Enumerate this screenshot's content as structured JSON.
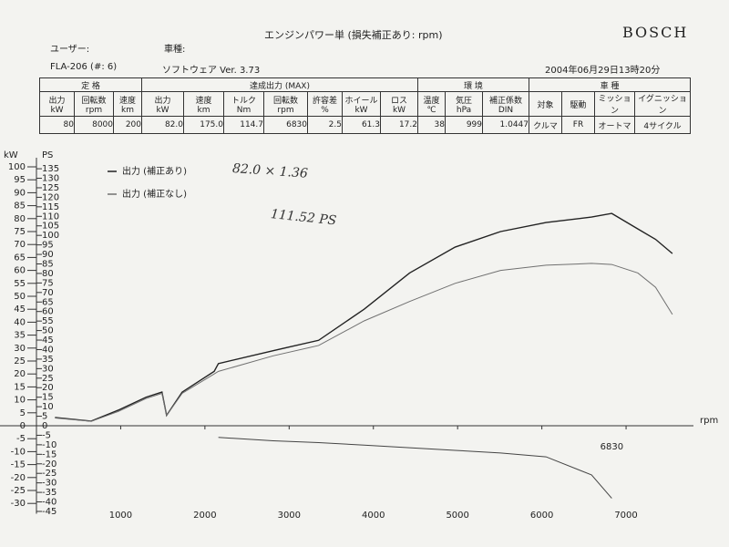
{
  "header": {
    "title": "エンジンパワー単 (損失補正あり: rpm)",
    "brand": "BOSCH",
    "user": "ユーザー:",
    "car": "車種:",
    "device": "FLA-206 (#: 6)",
    "software": "ソフトウェア Ver. 3.73",
    "datetime": "2004年06月29日13時20分"
  },
  "table": {
    "groups": [
      {
        "name": "定 格",
        "span": 3
      },
      {
        "name": "達成出力 (MAX)",
        "span": 7
      },
      {
        "name": "環 境",
        "span": 3
      },
      {
        "name": "車 種",
        "span": 4
      }
    ],
    "headers": [
      {
        "name": "出力",
        "unit": "kW"
      },
      {
        "name": "回転数",
        "unit": "rpm"
      },
      {
        "name": "速度",
        "unit": "km"
      },
      {
        "name": "出力",
        "unit": "kW"
      },
      {
        "name": "速度",
        "unit": "km"
      },
      {
        "name": "トルク",
        "unit": "Nm"
      },
      {
        "name": "回転数",
        "unit": "rpm"
      },
      {
        "name": "許容差",
        "unit": "%"
      },
      {
        "name": "ホイール",
        "unit": "kW"
      },
      {
        "name": "ロス",
        "unit": "kW"
      },
      {
        "name": "温度",
        "unit": "℃"
      },
      {
        "name": "気圧",
        "unit": "hPa"
      },
      {
        "name": "補正係数",
        "unit": "DIN"
      },
      {
        "name": "対象"
      },
      {
        "name": "駆動"
      },
      {
        "name": "ミッション"
      },
      {
        "name": "イグニッション"
      }
    ],
    "row": [
      "80",
      "8000",
      "200",
      "82.0",
      "175.0",
      "114.7",
      "6830",
      "2.5",
      "61.3",
      "17.2",
      "38",
      "999",
      "1.0447",
      "クルマ",
      "FR",
      "オートマ",
      "4サイクル"
    ]
  },
  "chart_data": {
    "type": "line",
    "y_label": "kW",
    "y2_label": "PS",
    "x_label": "rpm",
    "x": [
      220,
      650,
      970,
      1300,
      1490,
      1545,
      1730,
      2110,
      2160,
      2810,
      3350,
      3890,
      4430,
      4970,
      5510,
      6050,
      6590,
      6830,
      7140,
      7350,
      7550
    ],
    "series": [
      {
        "name": "出力 (補正あり)",
        "color": "#222222",
        "values": [
          3.2,
          1.8,
          6,
          11,
          13,
          4,
          13,
          21,
          24,
          29,
          33,
          45,
          59,
          69,
          75,
          78.5,
          80.6,
          82.0,
          76,
          72,
          66.5
        ]
      },
      {
        "name": "出力 (補正なし)",
        "color": "#707070",
        "values": [
          3,
          1.7,
          5.5,
          10.5,
          12.5,
          4,
          12.5,
          20,
          21,
          27,
          31,
          40.5,
          48,
          55,
          60,
          62,
          62.7,
          62.3,
          59,
          53.5,
          43
        ]
      },
      {
        "color": "#444444",
        "values": [
          null,
          null,
          null,
          null,
          null,
          null,
          null,
          null,
          -4.5,
          -5.8,
          -6.5,
          -7.5,
          -8.5,
          -9.5,
          -10.5,
          -12,
          -19,
          -28,
          null,
          null,
          null
        ]
      }
    ],
    "xlim": [
      0,
      7800
    ],
    "xticks": [
      1000,
      2000,
      3000,
      4000,
      5000,
      6000,
      7000
    ],
    "ylim": [
      -34,
      100
    ],
    "yticks": [
      -30,
      -25,
      -20,
      -15,
      -10,
      -5,
      0,
      5,
      10,
      15,
      20,
      25,
      30,
      35,
      40,
      45,
      50,
      55,
      60,
      65,
      70,
      75,
      80,
      85,
      90,
      95,
      100
    ],
    "y2lim": [
      -46.24,
      136
    ],
    "y2ticks": [
      -45,
      -40,
      -35,
      -30,
      -25,
      -20,
      -15,
      -10,
      -5,
      0,
      5,
      10,
      15,
      20,
      25,
      30,
      35,
      40,
      45,
      50,
      55,
      60,
      65,
      70,
      75,
      80,
      85,
      90,
      95,
      100,
      105,
      110,
      115,
      120,
      125,
      130,
      135
    ],
    "annotations": [
      "82.0 × 1.36",
      "111.52 PS",
      "6830"
    ]
  }
}
